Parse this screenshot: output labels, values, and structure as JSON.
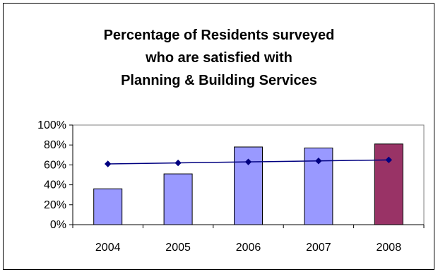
{
  "chart_data": {
    "type": "bar",
    "title_lines": [
      "Percentage of Residents surveyed",
      "who are satisfied with",
      "Planning & Building Services"
    ],
    "categories": [
      "2004",
      "2005",
      "2006",
      "2007",
      "2008"
    ],
    "series": [
      {
        "type": "bar",
        "values": [
          36,
          51,
          78,
          77,
          81
        ],
        "colors": [
          "#9999ff",
          "#9999ff",
          "#9999ff",
          "#9999ff",
          "#993366"
        ]
      },
      {
        "type": "line",
        "values": [
          61,
          62,
          63,
          64,
          65
        ],
        "color": "#000080",
        "marker": "diamond"
      }
    ],
    "ylim": [
      0,
      100
    ],
    "yticks": [
      0,
      20,
      40,
      60,
      80,
      100
    ],
    "ytick_labels": [
      "0%",
      "20%",
      "40%",
      "60%",
      "80%",
      "100%"
    ],
    "xlabel": "",
    "ylabel": "",
    "grid": false,
    "legend": "none"
  }
}
